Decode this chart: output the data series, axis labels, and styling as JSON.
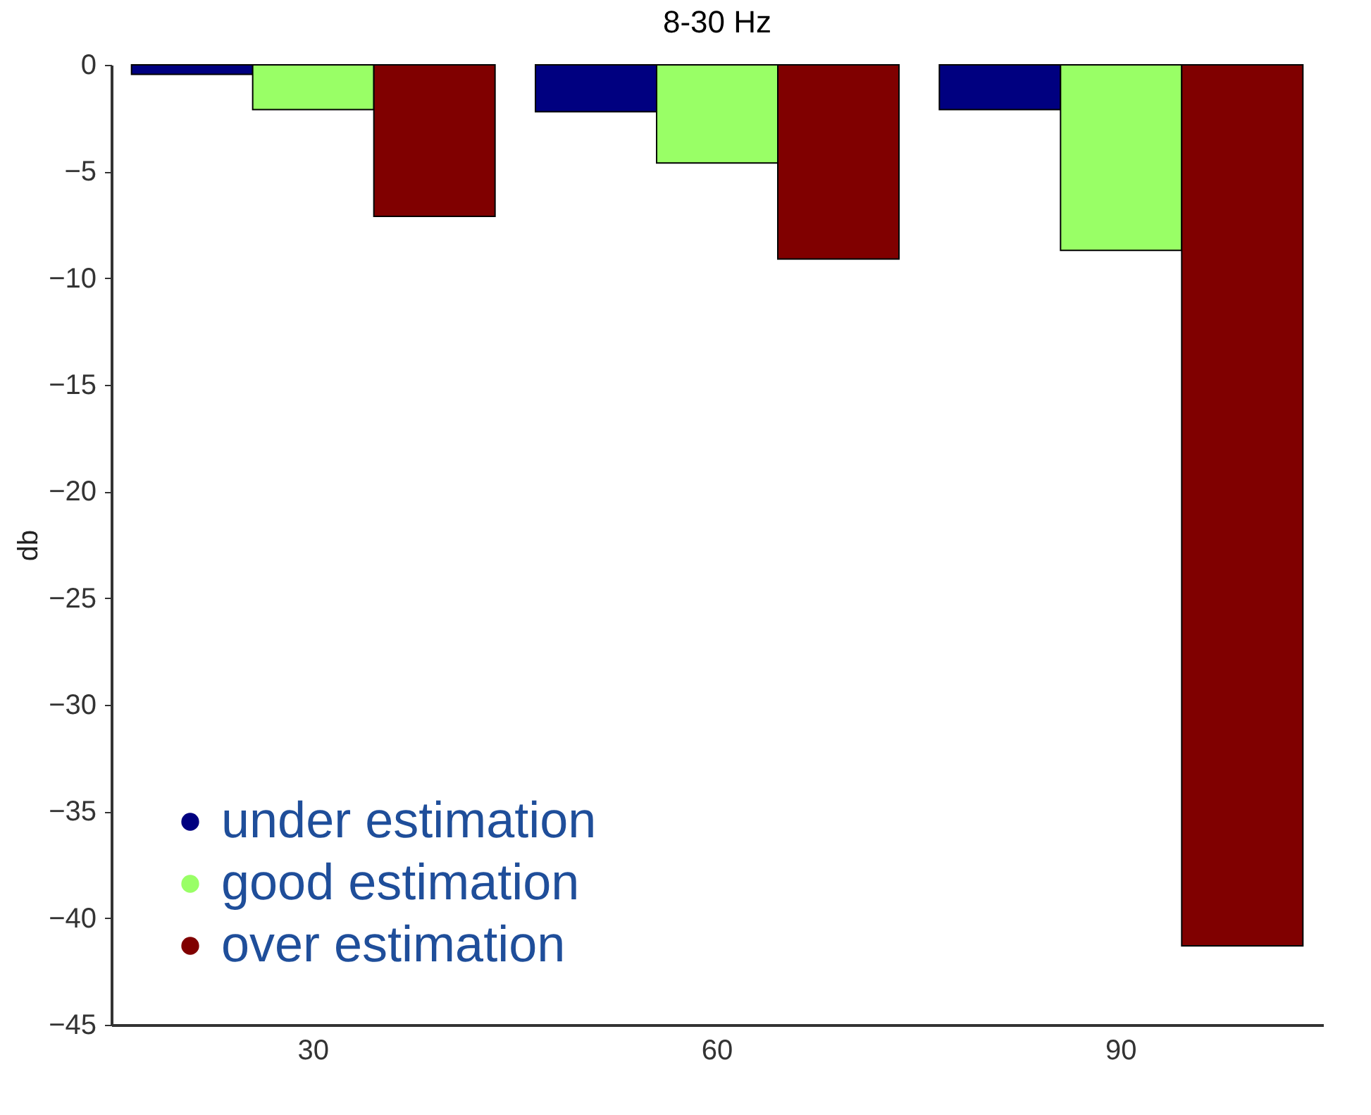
{
  "chart_data": {
    "type": "bar",
    "title": "8-30 Hz",
    "ylabel": "db",
    "categories": [
      "30",
      "60",
      "90"
    ],
    "series": [
      {
        "name": "under estimation",
        "color": "#000080",
        "values": [
          -0.45,
          -2.2,
          -2.1
        ]
      },
      {
        "name": "good estimation",
        "color": "#99ff66",
        "values": [
          -2.1,
          -4.6,
          -8.7
        ]
      },
      {
        "name": "over estimation",
        "color": "#800000",
        "values": [
          -7.1,
          -9.1,
          -41.3
        ]
      }
    ],
    "ylim": [
      -45,
      0
    ],
    "yticks": [
      -45,
      -40,
      -35,
      -30,
      -25,
      -20,
      -15,
      -10,
      -5,
      0
    ],
    "legend": "bottom left",
    "grid": false
  }
}
